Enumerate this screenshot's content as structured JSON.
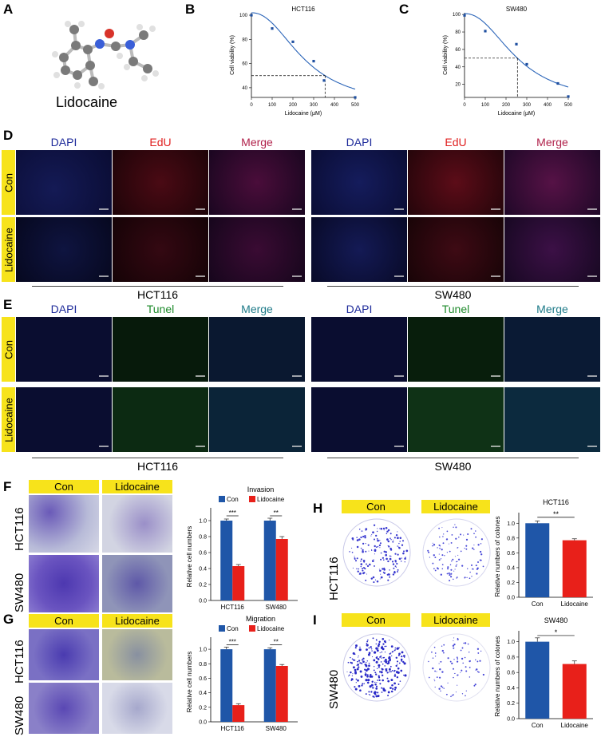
{
  "panels": {
    "a": "A",
    "b": "B",
    "c": "C",
    "d": "D",
    "e": "E",
    "f": "F",
    "g": "G",
    "h": "H",
    "i": "I"
  },
  "molecule": {
    "name": "Lidocaine"
  },
  "fluor": {
    "dapi": "DAPI",
    "edu": "EdU",
    "tunel": "Tunel",
    "merge": "Merge",
    "con": "Con",
    "lido": "Lidocaine",
    "hct": "HCT116",
    "sw": "SW480"
  },
  "invasion_photos": {
    "con": "Con",
    "lido": "Lidocaine",
    "hct": "HCT116",
    "sw": "SW480"
  },
  "colony_photos": {
    "con": "Con",
    "lido": "Lidocaine",
    "hct": "HCT116",
    "sw": "SW480"
  },
  "chart_data": [
    {
      "id": "B",
      "type": "scatter",
      "title": "HCT116",
      "xlabel": "Lidocaine (μM)",
      "ylabel": "Cell viability (%)",
      "xticks": [
        0,
        100,
        200,
        300,
        400,
        500
      ],
      "yticks": [
        40,
        60,
        80,
        100
      ],
      "xlim": [
        0,
        500
      ],
      "ylim": [
        32,
        102
      ],
      "x": [
        0,
        100,
        200,
        300,
        350,
        500
      ],
      "y": [
        100,
        89,
        78,
        62,
        46,
        32
      ],
      "ic50": {
        "x": 355,
        "y": 50
      },
      "fit": "sigmoid"
    },
    {
      "id": "C",
      "type": "scatter",
      "title": "SW480",
      "xlabel": "Lidocaine (μM)",
      "ylabel": "Cell viability (%)",
      "xticks": [
        0,
        100,
        200,
        300,
        400,
        500
      ],
      "yticks": [
        20,
        40,
        60,
        80,
        100
      ],
      "xlim": [
        0,
        500
      ],
      "ylim": [
        5,
        102
      ],
      "x": [
        0,
        100,
        250,
        300,
        450,
        500
      ],
      "y": [
        99,
        81,
        66,
        43,
        21,
        6
      ],
      "ic50": {
        "x": 255,
        "y": 50
      },
      "fit": "sigmoid"
    },
    {
      "id": "F",
      "type": "bar",
      "title": "Invasion",
      "ylabel": "Relative cell numbers",
      "categories": [
        "HCT116",
        "SW480"
      ],
      "yticks": [
        0.0,
        0.2,
        0.4,
        0.6,
        0.8,
        1.0
      ],
      "ylim": [
        0,
        1.1
      ],
      "series": [
        {
          "name": "Con",
          "color": "#1f56a8",
          "values": [
            1.0,
            1.0
          ],
          "err": [
            0.02,
            0.03
          ]
        },
        {
          "name": "Lidocaine",
          "color": "#e8201a",
          "values": [
            0.43,
            0.77
          ],
          "err": [
            0.02,
            0.03
          ]
        }
      ],
      "sig": [
        "***",
        "**"
      ]
    },
    {
      "id": "G",
      "type": "bar",
      "title": "Migration",
      "ylabel": "Relative cell numbers",
      "categories": [
        "HCT116",
        "SW480"
      ],
      "yticks": [
        0.0,
        0.2,
        0.4,
        0.6,
        0.8,
        1.0
      ],
      "ylim": [
        0,
        1.1
      ],
      "series": [
        {
          "name": "Con",
          "color": "#1f56a8",
          "values": [
            1.0,
            1.0
          ],
          "err": [
            0.03,
            0.02
          ]
        },
        {
          "name": "Lidocaine",
          "color": "#e8201a",
          "values": [
            0.23,
            0.77
          ],
          "err": [
            0.02,
            0.02
          ]
        }
      ],
      "sig": [
        "***",
        "**"
      ]
    },
    {
      "id": "H",
      "type": "bar",
      "title": "HCT116",
      "ylabel": "Relative numbers of colones",
      "categories": [
        "Con",
        "Lidocaine"
      ],
      "yticks": [
        0.0,
        0.2,
        0.4,
        0.6,
        0.8,
        1.0
      ],
      "ylim": [
        0,
        1.1
      ],
      "series": [
        {
          "name": "",
          "colors": [
            "#1f56a8",
            "#e8201a"
          ],
          "values": [
            1.0,
            0.77
          ],
          "err": [
            0.03,
            0.02
          ]
        }
      ],
      "sig": [
        "**"
      ]
    },
    {
      "id": "I",
      "type": "bar",
      "title": "SW480",
      "ylabel": "Relative numbers of colones",
      "categories": [
        "Con",
        "Lidocaine"
      ],
      "yticks": [
        0.0,
        0.2,
        0.4,
        0.6,
        0.8,
        1.0
      ],
      "ylim": [
        0,
        1.1
      ],
      "series": [
        {
          "name": "",
          "colors": [
            "#1f56a8",
            "#e8201a"
          ],
          "values": [
            1.0,
            0.71
          ],
          "err": [
            0.05,
            0.04
          ]
        }
      ],
      "sig": [
        "*"
      ]
    }
  ]
}
